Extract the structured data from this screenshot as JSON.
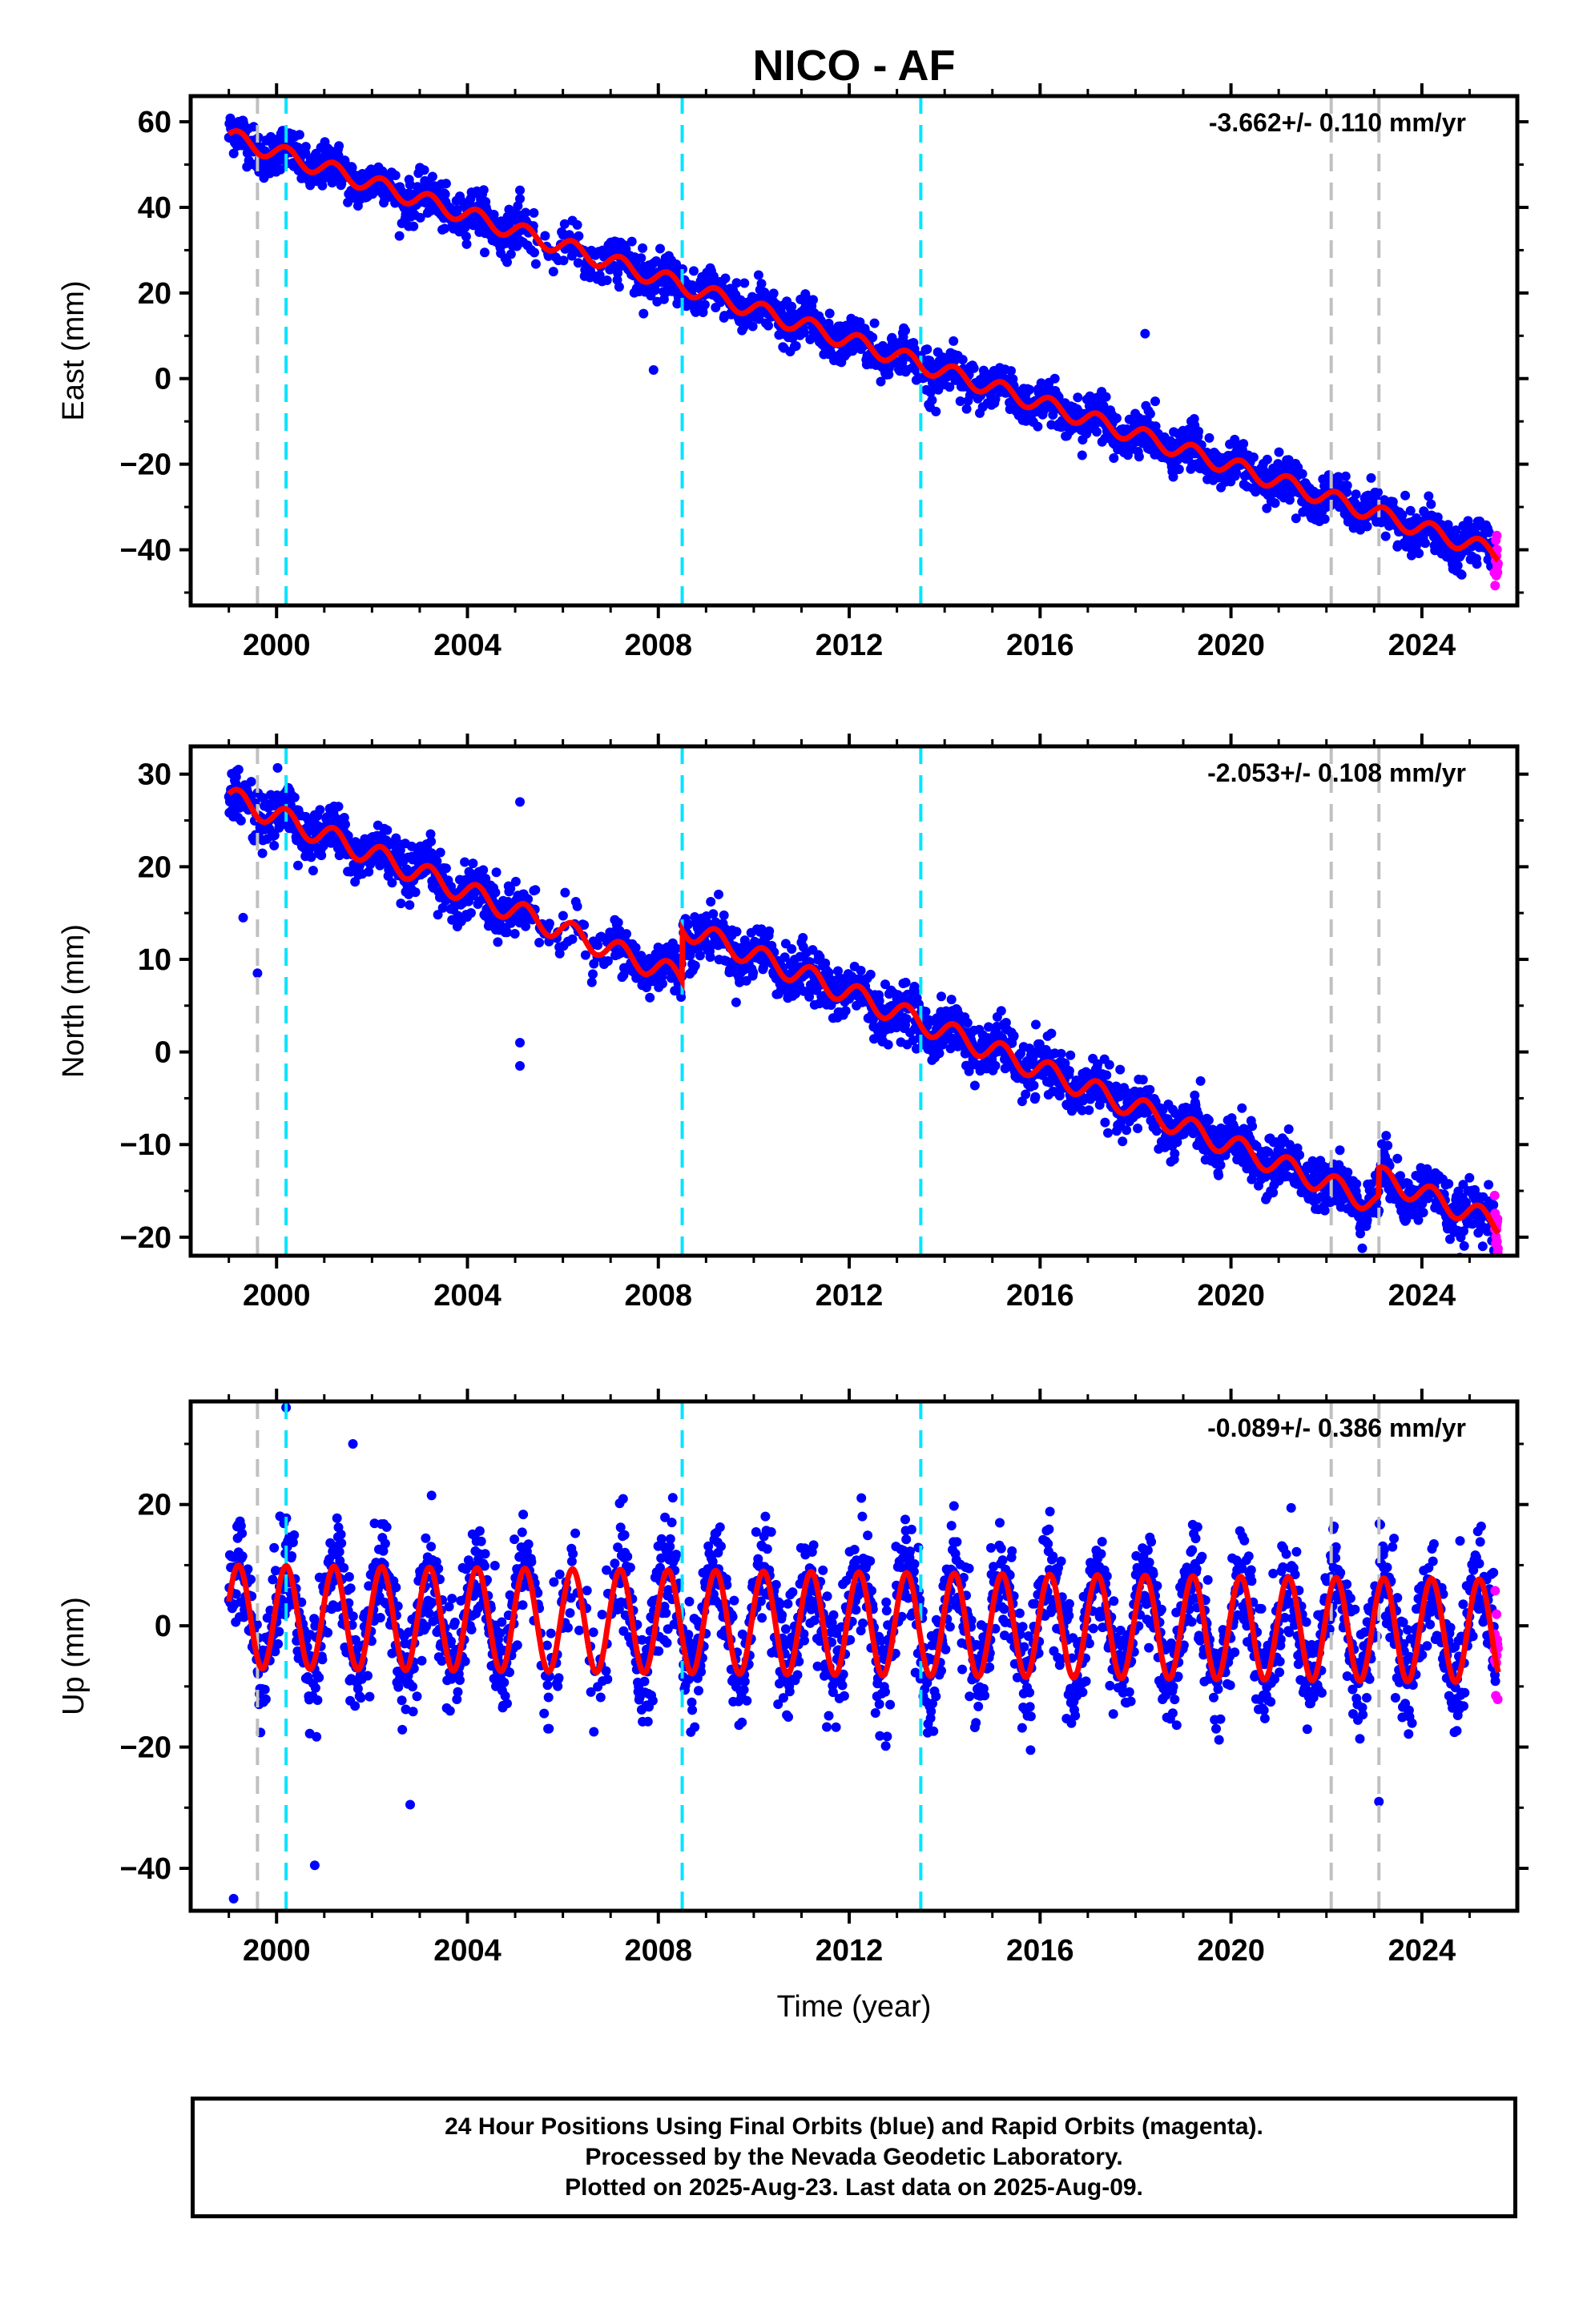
{
  "chart_data": [
    {
      "type": "scatter",
      "title": "NICO - AF",
      "ylabel": "East (mm)",
      "xlabel": "",
      "rate_text": "-3.662+/- 0.110 mm/yr",
      "xlim": [
        1998.2,
        2026.0
      ],
      "ylim": [
        -53,
        66
      ],
      "yticks": [
        60,
        40,
        20,
        0,
        -20,
        -40
      ],
      "ytick_labels": [
        "60",
        "40",
        "20",
        "0",
        "−20",
        "−40"
      ],
      "xticks": [
        2000,
        2004,
        2008,
        2012,
        2016,
        2020,
        2024
      ],
      "xtick_labels": [
        "2000",
        "2004",
        "2008",
        "2012",
        "2016",
        "2020",
        "2024"
      ],
      "model": {
        "start": 1999.0,
        "end": 2025.6,
        "offset": 56.5,
        "rate": -3.662,
        "amplitude": 2.0
      },
      "breaks": [
        {
          "year": 2007.2,
          "dy": 0
        },
        {
          "year": 2008.4,
          "dy": 0
        }
      ],
      "noise": 2.5,
      "outliers": [
        [
          2018.2,
          10.5
        ],
        [
          2005.1,
          44
        ],
        [
          2005.1,
          42
        ],
        [
          2007.9,
          2
        ]
      ],
      "vlines_gray": [
        1999.6,
        2022.1,
        2023.1
      ],
      "vlines_cyan": [
        2000.2,
        2008.5,
        2013.5
      ]
    },
    {
      "type": "scatter",
      "title": "",
      "ylabel": "North (mm)",
      "xlabel": "",
      "rate_text": "-2.053+/- 0.108 mm/yr",
      "xlim": [
        1998.2,
        2026.0
      ],
      "ylim": [
        -22,
        33
      ],
      "yticks": [
        30,
        20,
        10,
        0,
        -10,
        -20
      ],
      "ytick_labels": [
        "30",
        "20",
        "10",
        "0",
        "−10",
        "−20"
      ],
      "xticks": [
        2000,
        2004,
        2008,
        2012,
        2016,
        2020,
        2024
      ],
      "xtick_labels": [
        "2000",
        "2004",
        "2008",
        "2012",
        "2016",
        "2020",
        "2024"
      ],
      "model": {
        "start": 1999.0,
        "end": 2025.6,
        "offset": 27.5,
        "rate": -2.053,
        "amplitude": 1.2
      },
      "breaks": [
        {
          "year": 2008.5,
          "dy": 5.5
        },
        {
          "year": 2023.1,
          "dy": 3.0
        }
      ],
      "noise": 1.4,
      "outliers": [
        [
          2005.1,
          27
        ],
        [
          2005.1,
          1
        ],
        [
          2005.1,
          -1.5
        ],
        [
          1999.6,
          8.5
        ],
        [
          1999.3,
          14.5
        ]
      ],
      "vlines_gray": [
        1999.6,
        2022.1,
        2023.1
      ],
      "vlines_cyan": [
        2000.2,
        2008.5,
        2013.5
      ]
    },
    {
      "type": "scatter",
      "title": "",
      "ylabel": "Up (mm)",
      "xlabel": "Time (year)",
      "rate_text": "-0.089+/- 0.386 mm/yr",
      "xlim": [
        1998.2,
        2026.0
      ],
      "ylim": [
        -47,
        37
      ],
      "yticks": [
        20,
        0,
        -20,
        -40
      ],
      "ytick_labels": [
        "20",
        "0",
        "−20",
        "−40"
      ],
      "xticks": [
        2000,
        2004,
        2008,
        2012,
        2016,
        2020,
        2024
      ],
      "xtick_labels": [
        "2000",
        "2004",
        "2008",
        "2012",
        "2016",
        "2020",
        "2024"
      ],
      "model": {
        "start": 1999.0,
        "end": 2025.6,
        "offset": 1.5,
        "rate": -0.089,
        "amplitude": 8.5
      },
      "breaks": [],
      "noise": 4.5,
      "outliers": [
        [
          2000.2,
          36
        ],
        [
          2001.6,
          30
        ],
        [
          2002.8,
          -29.5
        ],
        [
          2000.8,
          -39.5
        ],
        [
          1999.1,
          -45
        ],
        [
          2023.1,
          -29
        ],
        [
          2015.8,
          -20.5
        ],
        [
          2024.8,
          14
        ]
      ],
      "vlines_gray": [
        1999.6,
        2022.1,
        2023.1
      ],
      "vlines_cyan": [
        2000.2,
        2008.5,
        2013.5
      ]
    }
  ],
  "legend": {
    "final_color": "#0000ff",
    "rapid_color": "#ff00ff",
    "model_color": "#ff0000",
    "break_color_gray": "#c0c0c0",
    "break_color_cyan": "#00e5ff"
  },
  "footer": {
    "line1": "24 Hour Positions Using Final Orbits (blue) and Rapid Orbits (magenta).",
    "line2": "Processed by the Nevada Geodetic Laboratory.",
    "line3": "Plotted on 2025-Aug-23. Last data on 2025-Aug-09."
  }
}
